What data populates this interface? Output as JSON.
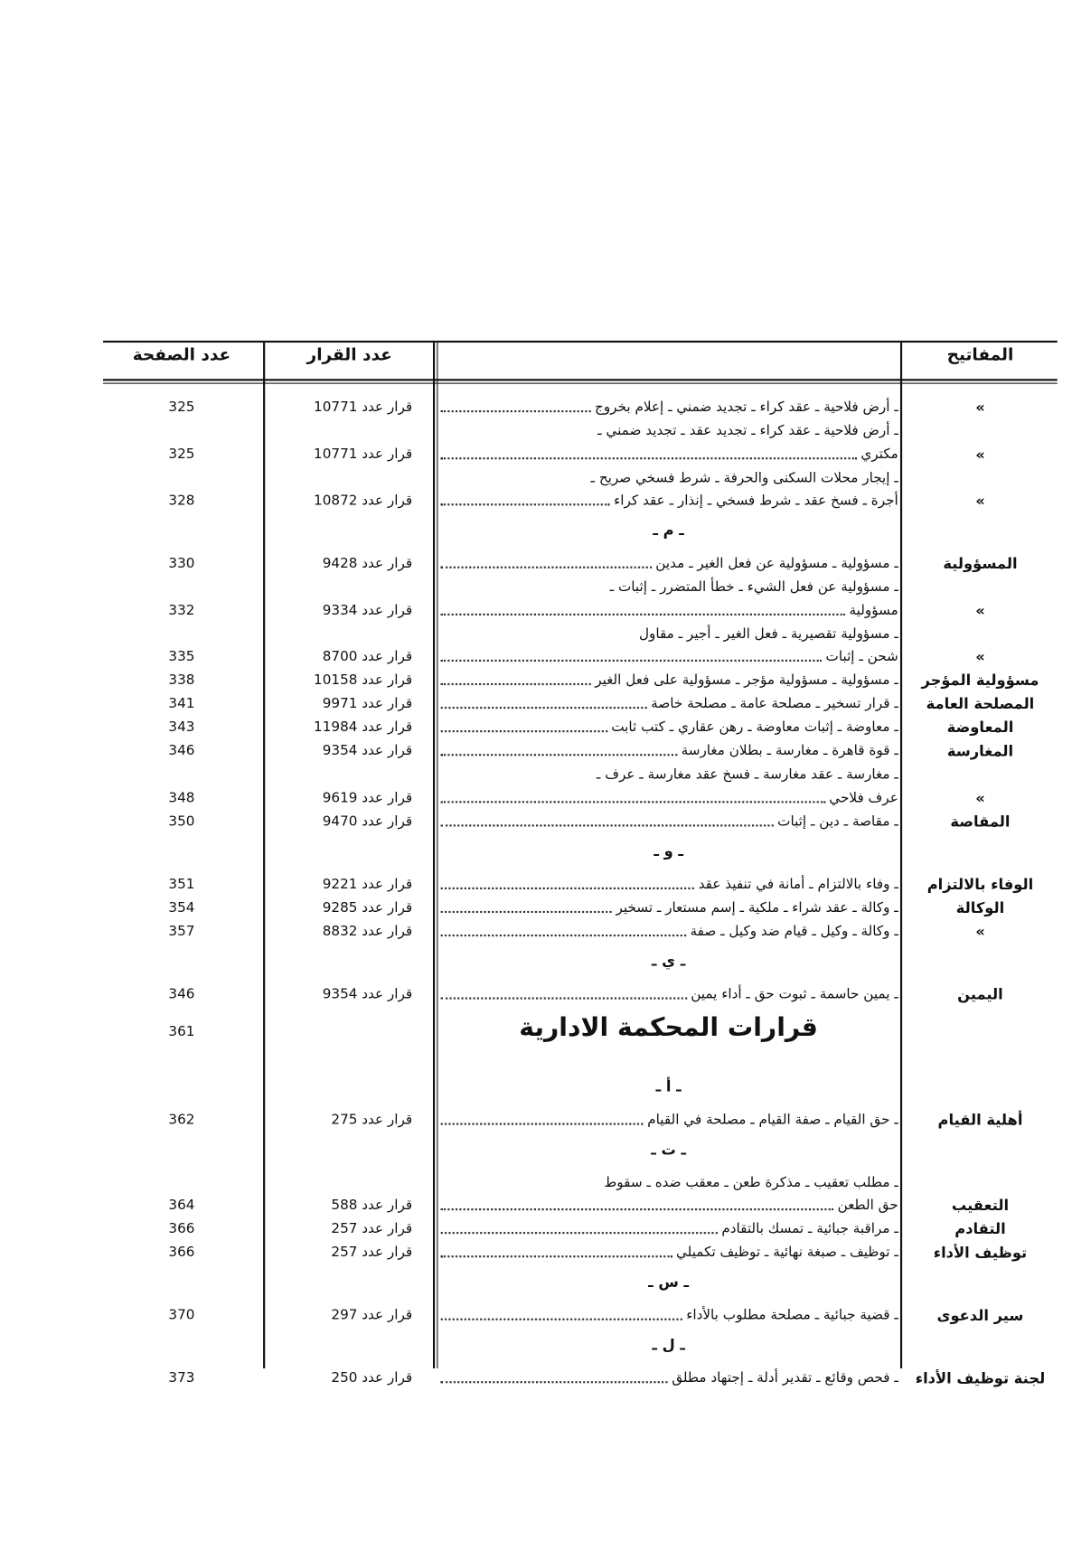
{
  "header": {
    "keywords": "المفاتيح",
    "decision": "عدد القرار",
    "page": "عدد الصفحة"
  },
  "entries": [
    {
      "keyword": "»",
      "description": [
        "ـ أرض فلاحية ـ عقد كراء ـ تجديد ضمني ـ إعلام بخروج"
      ],
      "decision": "قرار عدد 10771",
      "page": 325
    },
    {
      "keyword": "»",
      "description": [
        "ـ أرض فلاحية ـ عقد كراء ـ تجديد عقد ـ تجديد ضمني ـ",
        "مكتري"
      ],
      "decision": "قرار عدد 10771",
      "page": 325
    },
    {
      "keyword": "»",
      "description": [
        "ـ إيجار محلات السكنى والحرفة ـ شرط فسخي صريح ـ",
        "أجرة ـ فسخ عقد ـ شرط فسخي ـ إنذار ـ عقد كراء"
      ],
      "decision": "قرار عدد 10872",
      "page": 328
    },
    {
      "section": "ـ م ـ"
    },
    {
      "keyword": "المسؤولية",
      "description": [
        "ـ مسؤولية ـ مسؤولية عن فعل الغير ـ مدين"
      ],
      "decision": "قرار عدد 9428",
      "page": 330
    },
    {
      "keyword": "»",
      "description": [
        "ـ مسؤولية عن فعل الشيء ـ خطأ المتضرر ـ إثبات ـ",
        "مسؤولية"
      ],
      "decision": "قرار عدد 9334",
      "page": 332
    },
    {
      "keyword": "»",
      "description": [
        "ـ مسؤولية تقصيرية ـ فعل الغير ـ أجير ـ مقاول",
        "شحن ـ إثبات"
      ],
      "decision": "قرار عدد 8700",
      "page": 335
    },
    {
      "keyword": "مسؤولية المؤجر",
      "description": [
        "ـ مسؤولية ـ مسؤولية مؤجر ـ مسؤولية على فعل الغير"
      ],
      "decision": "قرار عدد 10158",
      "page": 338
    },
    {
      "keyword": "المصلحة العامة",
      "description": [
        "ـ قرار تسخير ـ مصلحة عامة ـ مصلحة خاصة"
      ],
      "decision": "قرار عدد 9971",
      "page": 341
    },
    {
      "keyword": "المعاوضة",
      "description": [
        "ـ معاوضة ـ إثبات معاوضة ـ رهن عقاري ـ كتب ثابت"
      ],
      "decision": "قرار عدد 11984",
      "page": 343
    },
    {
      "keyword": "المغارسة",
      "description": [
        "ـ قوة قاهرة ـ مغارسة ـ بطلان مغارسة"
      ],
      "decision": "قرار عدد 9354",
      "page": 346
    },
    {
      "keyword": "»",
      "description": [
        "ـ مغارسة ـ عقد مغارسة ـ فسخ عقد مغارسة ـ عرف ـ",
        "عرف فلاحي"
      ],
      "decision": "قرار عدد 9619",
      "page": 348
    },
    {
      "keyword": "المقاصة",
      "description": [
        "ـ مقاصة ـ دين ـ إثبات"
      ],
      "decision": "قرار عدد 9470",
      "page": 350
    },
    {
      "section": "ـ و ـ"
    },
    {
      "keyword": "الوفاء بالالتزام",
      "description": [
        "ـ وفاء بالالتزام ـ أمانة في تنفيذ عقد"
      ],
      "decision": "قرار عدد 9221",
      "page": 351
    },
    {
      "keyword": "الوكالة",
      "description": [
        "ـ وكالة ـ عقد شراء ـ ملكية ـ إسم مستعار ـ تسخير"
      ],
      "decision": "قرار عدد 9285",
      "page": 354
    },
    {
      "keyword": "»",
      "description": [
        "ـ وكالة ـ وكيل ـ قيام ضد وكيل ـ صفة"
      ],
      "decision": "قرار عدد 8832",
      "page": 357
    },
    {
      "section": "ـ ي ـ"
    },
    {
      "keyword": "اليمين",
      "description": [
        "ـ يمين حاسمة ـ ثبوت حق ـ أداء يمين"
      ],
      "decision": "قرار عدد 9354",
      "page": 346
    },
    {
      "heading": "قرارات المحكمة الادارية",
      "page": 361
    },
    {
      "section": "ـ أ ـ"
    },
    {
      "keyword": "أهلية القيام",
      "description": [
        "ـ حق القيام ـ صفة القيام ـ مصلحة في القيام"
      ],
      "decision": "قرار عدد 275",
      "page": 362
    },
    {
      "section": "ـ ت ـ"
    },
    {
      "keyword": "التعقيب",
      "description": [
        "ـ مطلب تعقيب ـ مذكرة طعن ـ معقب ضده ـ سقوط",
        "حق الطعن"
      ],
      "decision": "قرار عدد 588",
      "page": 364
    },
    {
      "keyword": "التقادم",
      "description": [
        "ـ مراقبة جبائية ـ تمسك بالتقادم"
      ],
      "decision": "قرار عدد 257",
      "page": 366
    },
    {
      "keyword": "توظيف الأداء",
      "description": [
        "ـ توظيف ـ صبغة نهائية ـ توظيف تكميلي"
      ],
      "decision": "قرار عدد 257",
      "page": 366
    },
    {
      "section": "ـ س ـ"
    },
    {
      "keyword": "سير الدعوى",
      "description": [
        "ـ قضية جبائية ـ مصلحة مطلوب بالأداء"
      ],
      "decision": "قرار عدد 297",
      "page": 370
    },
    {
      "section": "ـ ل ـ"
    },
    {
      "keyword": "لجنة توظيف الأداء",
      "description": [
        "ـ فحص وقائع ـ تقدير أدلة ـ إجتهاد مطلق"
      ],
      "decision": "قرار عدد 250",
      "page": 373
    }
  ]
}
